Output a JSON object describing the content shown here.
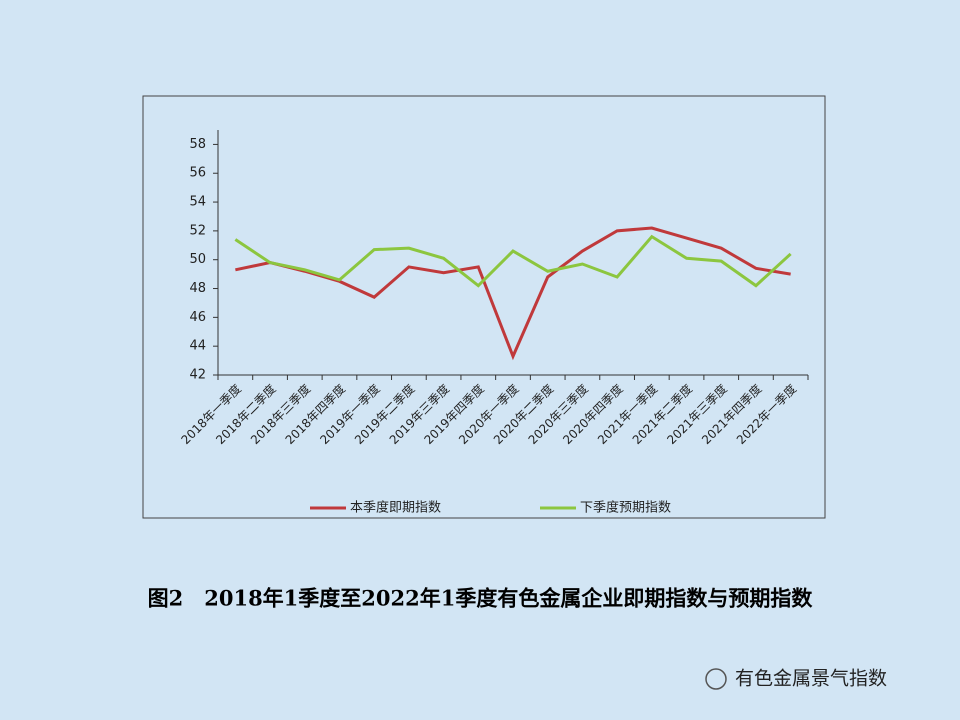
{
  "chart_data": {
    "type": "line",
    "categories": [
      "2018年一季度",
      "2018年二季度",
      "2018年三季度",
      "2018年四季度",
      "2019年一季度",
      "2019年二季度",
      "2019年三季度",
      "2019年四季度",
      "2020年一季度",
      "2020年二季度",
      "2020年三季度",
      "2020年四季度",
      "2021年一季度",
      "2021年二季度",
      "2021年三季度",
      "2021年四季度",
      "2022年一季度"
    ],
    "series": [
      {
        "name": "本季度即期指数",
        "color": "#c0393b",
        "values": [
          49.3,
          49.8,
          49.2,
          48.5,
          47.4,
          49.5,
          49.1,
          49.5,
          43.3,
          48.8,
          50.6,
          52.0,
          52.2,
          51.5,
          50.8,
          49.4,
          49.0
        ]
      },
      {
        "name": "下季度预期指数",
        "color": "#8cc63f",
        "values": [
          51.4,
          49.8,
          49.3,
          48.6,
          50.7,
          50.8,
          50.1,
          48.2,
          50.6,
          49.2,
          49.7,
          48.8,
          51.6,
          50.1,
          49.9,
          48.2,
          50.4
        ]
      }
    ],
    "ylim": [
      42,
      59
    ],
    "yticks": [
      42,
      44,
      46,
      48,
      50,
      52,
      54,
      56,
      58
    ],
    "grid": false,
    "legend": "bottom"
  },
  "caption": "图2　2018年1季度至2022年1季度有色金属企业即期指数与预期指数",
  "footer": "有色金属景气指数"
}
